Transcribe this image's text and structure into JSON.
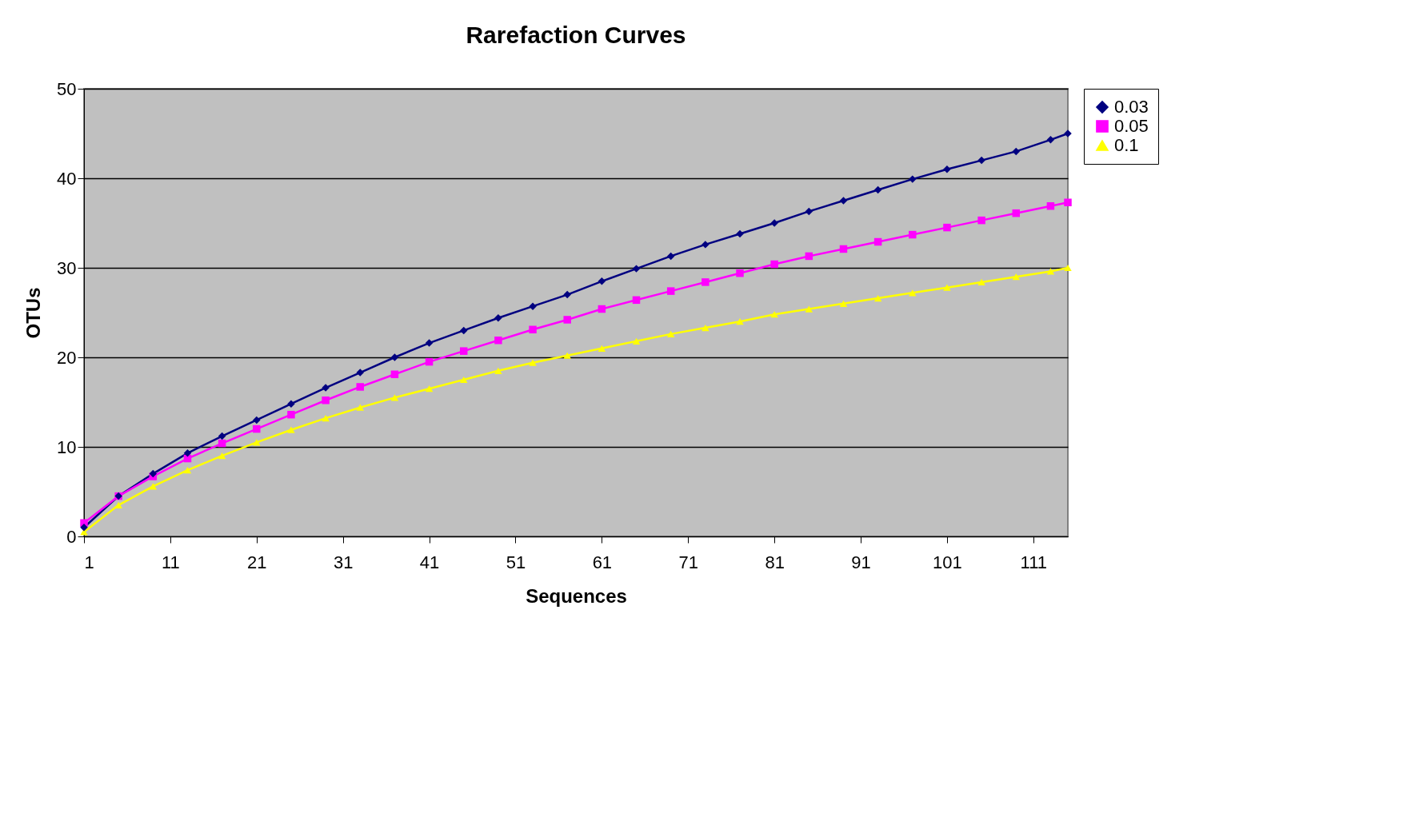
{
  "chart_data": {
    "type": "line",
    "title": "Rarefaction Curves",
    "xlabel": "Sequences",
    "ylabel": "OTUs",
    "x": [
      1,
      5,
      9,
      13,
      17,
      21,
      25,
      29,
      33,
      37,
      41,
      45,
      49,
      53,
      57,
      61,
      65,
      69,
      73,
      77,
      81,
      85,
      89,
      93,
      97,
      101,
      105,
      109,
      113,
      115
    ],
    "series": [
      {
        "name": "0.03",
        "color": "#000080",
        "marker": "diamond",
        "values": [
          1,
          4.5,
          7,
          9.3,
          11.2,
          13,
          14.8,
          16.6,
          18.3,
          20,
          21.6,
          23,
          24.4,
          25.7,
          27,
          28.5,
          29.9,
          31.3,
          32.6,
          33.8,
          35,
          36.3,
          37.5,
          38.7,
          39.9,
          41,
          42,
          43,
          44.3,
          45
        ]
      },
      {
        "name": "0.05",
        "color": "#ff00ff",
        "marker": "square",
        "values": [
          1.5,
          4.5,
          6.7,
          8.7,
          10.4,
          12,
          13.6,
          15.2,
          16.7,
          18.1,
          19.5,
          20.7,
          21.9,
          23.1,
          24.2,
          25.4,
          26.4,
          27.4,
          28.4,
          29.4,
          30.4,
          31.3,
          32.1,
          32.9,
          33.7,
          34.5,
          35.3,
          36.1,
          36.9,
          37.3
        ]
      },
      {
        "name": "0.1",
        "color": "#ffff00",
        "marker": "triangle",
        "values": [
          0.5,
          3.5,
          5.6,
          7.4,
          9,
          10.5,
          11.9,
          13.2,
          14.4,
          15.5,
          16.5,
          17.5,
          18.5,
          19.4,
          20.2,
          21,
          21.8,
          22.6,
          23.3,
          24,
          24.8,
          25.4,
          26,
          26.6,
          27.2,
          27.8,
          28.4,
          29,
          29.6,
          30
        ]
      }
    ],
    "xlim": [
      1,
      115
    ],
    "xticks": [
      1,
      11,
      21,
      31,
      41,
      51,
      61,
      71,
      81,
      91,
      101,
      111
    ],
    "ylim": [
      0,
      50
    ],
    "yticks": [
      0,
      10,
      20,
      30,
      40,
      50
    ],
    "grid": "y",
    "legend": "right",
    "line_style": "solid"
  }
}
